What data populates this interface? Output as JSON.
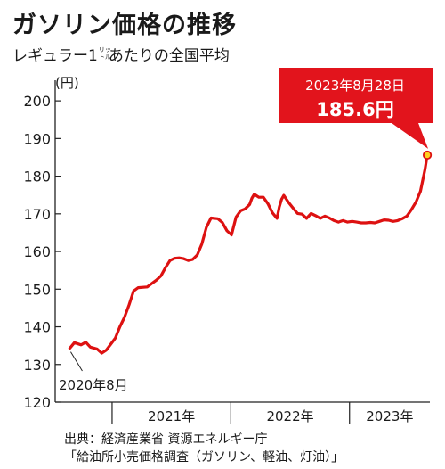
{
  "title": "ガソリン価格の推移",
  "subtitle": {
    "main": "レギュラー1",
    "unit_ruby_top": "リッ",
    "unit_ruby_bottom": "トル",
    "rest": "あたりの全国平均"
  },
  "source": {
    "line1": "出典：経済産業省 資源エネルギー庁",
    "line2": "「給油所小売価格調査（ガソリン、軽油、灯油）」"
  },
  "colors": {
    "line": "#dd1111",
    "callout": "#e2141c",
    "point_fill": "#ffd21f",
    "axis": "#222222"
  },
  "chart_data": {
    "type": "line",
    "title": "ガソリン価格の推移",
    "subtitle": "レギュラー1リットルあたりの全国平均",
    "ylabel": "(円)",
    "ylim": [
      120,
      205
    ],
    "yticks": [
      120,
      130,
      140,
      150,
      160,
      170,
      180,
      190,
      200
    ],
    "year_labels": [
      "2021年",
      "2022年",
      "2023年"
    ],
    "x_range": [
      "2020-08",
      "2023-08-28"
    ],
    "start_label": "2020年8月",
    "end_label": {
      "date": "2023年8月28日",
      "value": "185.6円"
    },
    "series": [
      {
        "points": [
          [
            "2020-08-24",
            134.3
          ],
          [
            "2020-09-07",
            135.8
          ],
          [
            "2020-09-28",
            135.2
          ],
          [
            "2020-10-12",
            135.9
          ],
          [
            "2020-10-26",
            134.6
          ],
          [
            "2020-11-16",
            134.1
          ],
          [
            "2020-11-30",
            133.0
          ],
          [
            "2020-12-14",
            133.8
          ],
          [
            "2020-12-28",
            135.4
          ],
          [
            "2021-01-11",
            137.0
          ],
          [
            "2021-01-25",
            140.0
          ],
          [
            "2021-02-08",
            142.5
          ],
          [
            "2021-02-22",
            145.8
          ],
          [
            "2021-03-08",
            149.5
          ],
          [
            "2021-03-22",
            150.4
          ],
          [
            "2021-04-19",
            150.6
          ],
          [
            "2021-05-03",
            151.5
          ],
          [
            "2021-05-17",
            152.4
          ],
          [
            "2021-05-31",
            153.5
          ],
          [
            "2021-06-14",
            155.7
          ],
          [
            "2021-06-28",
            157.6
          ],
          [
            "2021-07-12",
            158.2
          ],
          [
            "2021-07-26",
            158.3
          ],
          [
            "2021-08-09",
            158.1
          ],
          [
            "2021-08-23",
            157.6
          ],
          [
            "2021-09-06",
            157.9
          ],
          [
            "2021-09-20",
            159.1
          ],
          [
            "2021-10-04",
            162.0
          ],
          [
            "2021-10-18",
            166.4
          ],
          [
            "2021-11-01",
            168.9
          ],
          [
            "2021-11-22",
            168.7
          ],
          [
            "2021-12-06",
            167.7
          ],
          [
            "2021-12-20",
            165.5
          ],
          [
            "2022-01-03",
            164.4
          ],
          [
            "2022-01-17",
            169.1
          ],
          [
            "2022-01-31",
            170.8
          ],
          [
            "2022-02-14",
            171.3
          ],
          [
            "2022-02-28",
            172.5
          ],
          [
            "2022-03-07",
            174.2
          ],
          [
            "2022-03-14",
            175.2
          ],
          [
            "2022-03-28",
            174.4
          ],
          [
            "2022-04-11",
            174.4
          ],
          [
            "2022-04-25",
            172.7
          ],
          [
            "2022-05-09",
            170.3
          ],
          [
            "2022-05-23",
            168.8
          ],
          [
            "2022-05-30",
            171.8
          ],
          [
            "2022-06-06",
            173.9
          ],
          [
            "2022-06-13",
            174.9
          ],
          [
            "2022-06-27",
            173.1
          ],
          [
            "2022-07-11",
            171.6
          ],
          [
            "2022-07-25",
            170.1
          ],
          [
            "2022-08-08",
            169.9
          ],
          [
            "2022-08-22",
            168.8
          ],
          [
            "2022-09-05",
            170.1
          ],
          [
            "2022-09-19",
            169.5
          ],
          [
            "2022-10-03",
            168.8
          ],
          [
            "2022-10-17",
            169.4
          ],
          [
            "2022-10-31",
            168.9
          ],
          [
            "2022-11-14",
            168.2
          ],
          [
            "2022-11-28",
            167.8
          ],
          [
            "2022-12-12",
            168.2
          ],
          [
            "2022-12-26",
            167.8
          ],
          [
            "2023-01-09",
            168.0
          ],
          [
            "2023-01-23",
            167.8
          ],
          [
            "2023-02-06",
            167.6
          ],
          [
            "2023-02-20",
            167.6
          ],
          [
            "2023-03-06",
            167.7
          ],
          [
            "2023-03-20",
            167.6
          ],
          [
            "2023-04-03",
            168.0
          ],
          [
            "2023-04-17",
            168.4
          ],
          [
            "2023-05-01",
            168.3
          ],
          [
            "2023-05-15",
            168.0
          ],
          [
            "2023-05-29",
            168.2
          ],
          [
            "2023-06-12",
            168.7
          ],
          [
            "2023-06-26",
            169.4
          ],
          [
            "2023-07-10",
            171.1
          ],
          [
            "2023-07-24",
            173.1
          ],
          [
            "2023-08-07",
            176.0
          ],
          [
            "2023-08-21",
            181.8
          ],
          [
            "2023-08-28",
            185.6
          ]
        ]
      }
    ]
  }
}
